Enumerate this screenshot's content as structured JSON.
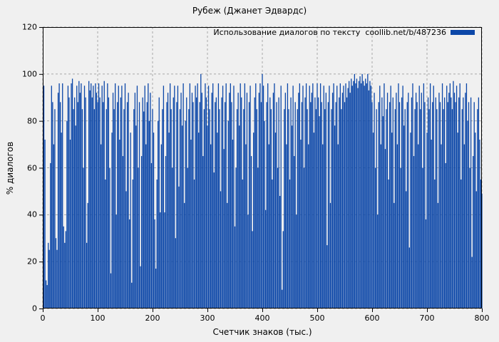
{
  "title": "Рубеж (Джанет Эдвардс)",
  "legend": {
    "label": "Использование диалогов по тексту  coollib.net/b/487236"
  },
  "axes": {
    "x_label": "Счетчик знаков (тыс.)",
    "y_label": "% диалогов"
  },
  "colors": {
    "series": "#0c47a8",
    "background": "#f0f0f0",
    "grid": "#a8a8a8",
    "border": "#000000",
    "text": "#000000"
  },
  "chart_data": {
    "type": "bar",
    "style": "impulses",
    "title": "Рубеж (Джанет Эдвардс)",
    "xlabel": "Счетчик знаков (тыс.)",
    "ylabel": "% диалогов",
    "xlim": [
      0,
      800
    ],
    "ylim": [
      0,
      120
    ],
    "x_ticks": [
      0,
      100,
      200,
      300,
      400,
      500,
      600,
      700,
      800
    ],
    "y_ticks": [
      0,
      20,
      40,
      60,
      80,
      100,
      120
    ],
    "grid": true,
    "legend_position": "top-right",
    "series_name": "Использование диалогов по тексту  coollib.net/b/487236",
    "x_start": 2,
    "x_step": 2,
    "values": [
      95,
      72,
      12,
      10,
      28,
      25,
      62,
      95,
      88,
      70,
      85,
      30,
      25,
      92,
      96,
      88,
      75,
      96,
      35,
      28,
      33,
      80,
      95,
      90,
      72,
      96,
      98,
      85,
      90,
      78,
      95,
      88,
      97,
      92,
      96,
      85,
      60,
      95,
      90,
      28,
      45,
      97,
      93,
      96,
      90,
      95,
      85,
      96,
      92,
      88,
      96,
      90,
      70,
      95,
      88,
      97,
      55,
      85,
      96,
      90,
      60,
      15,
      75,
      92,
      85,
      96,
      40,
      88,
      95,
      72,
      90,
      95,
      65,
      85,
      96,
      50,
      88,
      92,
      38,
      75,
      11,
      55,
      85,
      92,
      78,
      95,
      60,
      88,
      18,
      65,
      90,
      84,
      95,
      70,
      88,
      96,
      80,
      92,
      62,
      85,
      75,
      38,
      17,
      55,
      80,
      90,
      41,
      70,
      85,
      95,
      41,
      65,
      88,
      92,
      75,
      96,
      85,
      60,
      90,
      95,
      30,
      88,
      95,
      52,
      85,
      92,
      78,
      96,
      45,
      80,
      90,
      60,
      85,
      96,
      72,
      92,
      88,
      55,
      95,
      90,
      96,
      75,
      88,
      100,
      92,
      65,
      85,
      96,
      90,
      78,
      95,
      85,
      70,
      92,
      96,
      58,
      88,
      90,
      75,
      96,
      85,
      50,
      90,
      95,
      68,
      88,
      96,
      45,
      80,
      92,
      96,
      88,
      72,
      95,
      35,
      60,
      85,
      92,
      78,
      96,
      90,
      55,
      85,
      96,
      70,
      92,
      40,
      88,
      95,
      65,
      33,
      75,
      90,
      96,
      85,
      60,
      92,
      96,
      88,
      100,
      95,
      80,
      42,
      88,
      96,
      70,
      90,
      85,
      55,
      92,
      96,
      75,
      88,
      60,
      90,
      48,
      95,
      8,
      33,
      85,
      92,
      70,
      96,
      85,
      55,
      90,
      78,
      95,
      65,
      88,
      40,
      85,
      92,
      96,
      72,
      88,
      95,
      60,
      90,
      96,
      85,
      70,
      95,
      88,
      92,
      96,
      75,
      90,
      85,
      96,
      90,
      82,
      96,
      88,
      70,
      95,
      85,
      92,
      27,
      88,
      95,
      45,
      85,
      92,
      96,
      78,
      88,
      95,
      70,
      90,
      96,
      85,
      92,
      95,
      88,
      96,
      90,
      94,
      97,
      92,
      98,
      95,
      97,
      100,
      96,
      98,
      94,
      97,
      99,
      96,
      100,
      97,
      95,
      98,
      96,
      100,
      93,
      97,
      95,
      88,
      75,
      92,
      60,
      85,
      40,
      88,
      95,
      70,
      90,
      82,
      96,
      68,
      85,
      92,
      55,
      88,
      95,
      75,
      90,
      45,
      85,
      92,
      70,
      96,
      88,
      60,
      90,
      95,
      78,
      85,
      50,
      88,
      92,
      26,
      75,
      90,
      96,
      65,
      85,
      92,
      88,
      70,
      95,
      85,
      92,
      60,
      96,
      88,
      38,
      75,
      90,
      85,
      96,
      72,
      88,
      95,
      55,
      90,
      85,
      45,
      92,
      88,
      70,
      96,
      85,
      90,
      62,
      95,
      88,
      92,
      96,
      90,
      85,
      97,
      92,
      88,
      95,
      75,
      90,
      96,
      55,
      85,
      90,
      70,
      92,
      96,
      80,
      88,
      60,
      90,
      22,
      65,
      88,
      75,
      50,
      85,
      90,
      72,
      55,
      49
    ]
  }
}
